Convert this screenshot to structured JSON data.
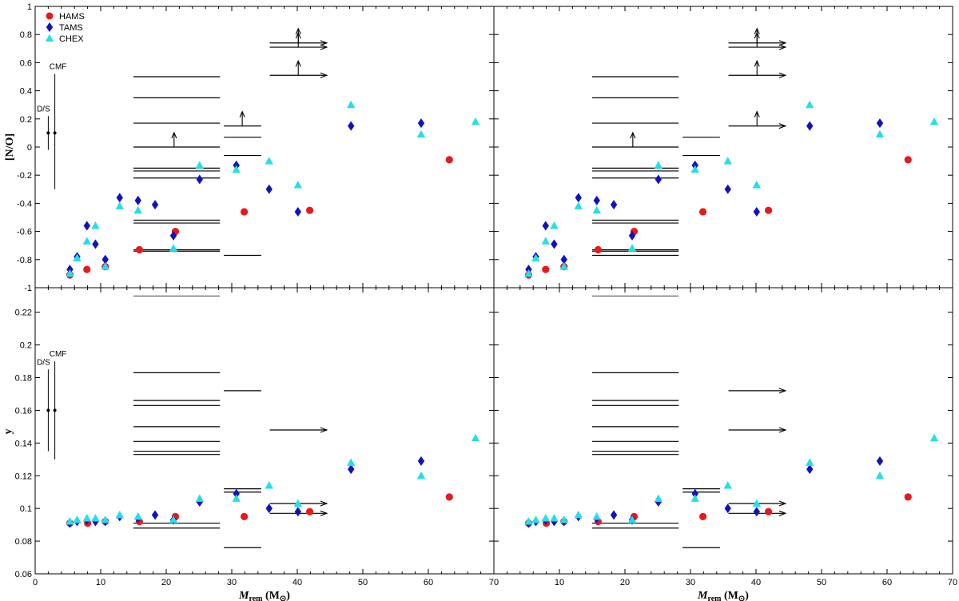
{
  "chart_data": {
    "type": "scatter",
    "title": "",
    "legend": {
      "placement": "top-left",
      "entries": [
        {
          "name": "HAMS",
          "marker": "circle",
          "color": "#e8191b"
        },
        {
          "name": "TAMS",
          "marker": "diamond",
          "color": "#1111c4"
        },
        {
          "name": "CHEX",
          "marker": "triangle",
          "color": "#22e0e8"
        }
      ]
    },
    "xlabel": "M_rem (M_sun)",
    "xlabel_parts": {
      "main": "M",
      "sub": "rem",
      "unit": "(M",
      "unit_sub": "⊙",
      "close": ")"
    },
    "xlim": [
      0,
      70
    ],
    "xticks": [
      0,
      10,
      20,
      30,
      40,
      50,
      60,
      70
    ],
    "panels": [
      {
        "ylabel": "[N/O]",
        "ylim": [
          -1,
          1
        ],
        "yticks": [
          -1,
          -0.8,
          -0.6,
          -0.4,
          -0.2,
          0,
          0.2,
          0.4,
          0.6,
          0.8,
          1
        ],
        "ytick_labels": [
          "-1",
          "-0.8",
          "-0.6",
          "-0.4",
          "-0.2",
          "0",
          "0.2",
          "0.4",
          "0.6",
          "0.8",
          "1"
        ]
      },
      {
        "ylabel": "y",
        "ylim": [
          0.06,
          0.235
        ],
        "yticks": [
          0.06,
          0.08,
          0.1,
          0.12,
          0.14,
          0.16,
          0.18,
          0.2,
          0.22
        ],
        "ytick_labels": [
          "0.06",
          "0.08",
          "0.1",
          "0.12",
          "0.14",
          "0.16",
          "0.18",
          "0.2",
          "0.22"
        ]
      }
    ],
    "series_no": [
      {
        "name": "HAMS",
        "x": [
          5.3,
          7.9,
          10.7,
          15.9,
          21.4,
          31.9,
          41.9,
          63.2
        ],
        "y": [
          -0.91,
          -0.87,
          -0.85,
          -0.73,
          -0.6,
          -0.46,
          -0.45,
          -0.09
        ]
      },
      {
        "name": "TAMS",
        "x": [
          5.3,
          6.4,
          7.9,
          9.2,
          10.7,
          12.9,
          15.7,
          18.3,
          21.1,
          25.1,
          30.7,
          35.7,
          40.1,
          48.2,
          58.9
        ],
        "y": [
          -0.87,
          -0.78,
          -0.56,
          -0.69,
          -0.8,
          -0.36,
          -0.38,
          -0.41,
          -0.63,
          -0.23,
          -0.13,
          -0.3,
          -0.46,
          0.15,
          0.17
        ]
      },
      {
        "name": "CHEX",
        "x": [
          5.3,
          6.4,
          7.9,
          9.2,
          10.7,
          12.9,
          15.7,
          21.1,
          25.1,
          30.7,
          35.7,
          40.1,
          48.2,
          58.9,
          67.2
        ],
        "y": [
          -0.9,
          -0.79,
          -0.67,
          -0.56,
          -0.85,
          -0.42,
          -0.45,
          -0.72,
          -0.13,
          -0.16,
          -0.1,
          -0.27,
          0.3,
          0.09,
          0.18
        ]
      }
    ],
    "series_y": [
      {
        "name": "HAMS",
        "x": [
          5.3,
          8,
          10.7,
          15.9,
          21.4,
          31.9,
          41.9,
          63.2
        ],
        "y": [
          0.091,
          0.091,
          0.092,
          0.092,
          0.095,
          0.095,
          0.098,
          0.107
        ]
      },
      {
        "name": "TAMS",
        "x": [
          5.3,
          6.4,
          7.9,
          9.2,
          10.7,
          12.9,
          15.7,
          18.3,
          21.1,
          25.1,
          30.7,
          35.7,
          40.1,
          48.2,
          58.9
        ],
        "y": [
          0.091,
          0.092,
          0.093,
          0.092,
          0.092,
          0.095,
          0.094,
          0.096,
          0.093,
          0.104,
          0.109,
          0.1,
          0.098,
          0.124,
          0.129
        ]
      },
      {
        "name": "CHEX",
        "x": [
          5.3,
          6.4,
          7.9,
          9.2,
          10.7,
          12.9,
          15.7,
          21.1,
          25.1,
          30.7,
          35.7,
          40.1,
          48.2,
          58.9,
          67.2
        ],
        "y": [
          0.092,
          0.093,
          0.094,
          0.094,
          0.093,
          0.096,
          0.095,
          0.093,
          0.106,
          0.106,
          0.114,
          0.103,
          0.128,
          0.12,
          0.143
        ]
      }
    ],
    "errorbars": {
      "no": [
        {
          "label": "D/S",
          "x": 2.0,
          "y": 0.1,
          "lo": -0.02,
          "hi": 0.22
        },
        {
          "label": "CMF",
          "x": 3.0,
          "y": 0.1,
          "lo": -0.3,
          "hi": 0.52
        }
      ],
      "y": [
        {
          "label": "D/S",
          "x": 2.0,
          "y": 0.16,
          "lo": 0.135,
          "hi": 0.185
        },
        {
          "label": "CMF",
          "x": 3.0,
          "y": 0.16,
          "lo": 0.13,
          "hi": 0.19
        }
      ]
    },
    "observations_no": [
      {
        "x0": 15,
        "x1": 28.2,
        "y": 0.5
      },
      {
        "x0": 15,
        "x1": 28.2,
        "y": 0.35
      },
      {
        "x0": 15,
        "x1": 28.2,
        "y": 0.17
      },
      {
        "x0": 15,
        "x1": 28.2,
        "y": 0.0
      },
      {
        "x0": 15,
        "x1": 28.2,
        "y": -0.15
      },
      {
        "x0": 15,
        "x1": 28.2,
        "y": -0.17
      },
      {
        "x0": 15,
        "x1": 28.2,
        "y": -0.22
      },
      {
        "x0": 15,
        "x1": 28.2,
        "y": -0.52
      },
      {
        "x0": 15,
        "x1": 28.2,
        "y": -0.54
      },
      {
        "x0": 15,
        "x1": 28.2,
        "y": -0.73
      },
      {
        "x0": 15,
        "x1": 28.2,
        "y": -0.74
      },
      {
        "x0": 28.8,
        "x1": 34.5,
        "y": -0.06
      }
    ],
    "observations_no_left_only": [
      {
        "x0": 28.8,
        "x1": 34.5,
        "y": 0.15
      },
      {
        "x0": 28.8,
        "x1": 34.5,
        "y": 0.07
      },
      {
        "x0": 28.8,
        "x1": 34.5,
        "y": -0.77
      }
    ],
    "observations_no_right_only": [
      {
        "x0": 15,
        "x1": 28.2,
        "y": -0.77
      },
      {
        "x0": 28.8,
        "x1": 34.5,
        "y": 0.07
      }
    ],
    "upper_limit_arrows_no": [
      {
        "x": 21.2,
        "y": 0.0
      }
    ],
    "upper_limit_arrows_no_left_only": [
      {
        "x": 31.6,
        "y": 0.15
      }
    ],
    "lower_limits_no": [
      {
        "x0": 35.8,
        "x1": 44.5,
        "y": 0.74,
        "up": true
      },
      {
        "x0": 35.8,
        "x1": 44.5,
        "y": 0.71,
        "up": true
      },
      {
        "x0": 35.8,
        "x1": 44.5,
        "y": 0.51,
        "up": true
      }
    ],
    "lower_limits_no_right_only": [
      {
        "x0": 35.8,
        "x1": 44.5,
        "y": 0.15,
        "up": true
      }
    ],
    "observations_y": [
      {
        "x0": 15,
        "x1": 28.2,
        "y": 0.23
      },
      {
        "x0": 15,
        "x1": 28.2,
        "y": 0.183
      },
      {
        "x0": 15,
        "x1": 28.2,
        "y": 0.166
      },
      {
        "x0": 15,
        "x1": 28.2,
        "y": 0.163
      },
      {
        "x0": 15,
        "x1": 28.2,
        "y": 0.15
      },
      {
        "x0": 15,
        "x1": 28.2,
        "y": 0.141
      },
      {
        "x0": 15,
        "x1": 28.2,
        "y": 0.135
      },
      {
        "x0": 15,
        "x1": 28.2,
        "y": 0.133
      },
      {
        "x0": 15,
        "x1": 28.2,
        "y": 0.091
      },
      {
        "x0": 15,
        "x1": 28.2,
        "y": 0.088
      },
      {
        "x0": 28.8,
        "x1": 34.5,
        "y": 0.112
      },
      {
        "x0": 28.8,
        "x1": 34.5,
        "y": 0.11
      },
      {
        "x0": 28.8,
        "x1": 34.5,
        "y": 0.076
      }
    ],
    "observations_y_left_only": [
      {
        "x0": 28.8,
        "x1": 34.5,
        "y": 0.172
      }
    ],
    "limits_y_left_only": [
      {
        "x0": 35.8,
        "x1": 44.5,
        "y": 0.148
      },
      {
        "x0": 35.8,
        "x1": 44.5,
        "y": 0.103
      },
      {
        "x0": 35.8,
        "x1": 44.5,
        "y": 0.097
      }
    ],
    "limits_y_right_only": [
      {
        "x0": 35.8,
        "x1": 44.5,
        "y": 0.172
      },
      {
        "x0": 35.8,
        "x1": 44.5,
        "y": 0.148
      },
      {
        "x0": 35.8,
        "x1": 44.5,
        "y": 0.103
      },
      {
        "x0": 35.8,
        "x1": 44.5,
        "y": 0.097
      }
    ]
  }
}
